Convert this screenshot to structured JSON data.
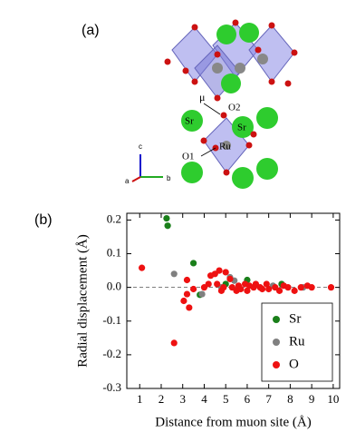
{
  "panel_a": {
    "label": "(a)",
    "atoms": [
      "μ",
      "O2",
      "Sr",
      "Sr",
      "Ru",
      "O1"
    ],
    "axes": [
      "c",
      "a",
      "b"
    ]
  },
  "chart_data": {
    "type": "scatter",
    "panel_label": "(b)",
    "x_label": "Distance from muon site (Å)",
    "y_label": "Radial displacement (Å)",
    "xlim": [
      0.4,
      10.3
    ],
    "ylim": [
      -0.3,
      0.22
    ],
    "xticks": [
      1,
      2,
      3,
      4,
      5,
      6,
      7,
      8,
      9,
      10
    ],
    "yticks": [
      -0.3,
      -0.2,
      -0.1,
      {
        "value": 0,
        "label": "0.0"
      },
      0.1,
      0.2
    ],
    "legend": "lower right",
    "series": [
      {
        "name": "Sr",
        "color": "#1a7f1a",
        "x": [
          2.25,
          2.3,
          3.5,
          3.8,
          5.0,
          6.0,
          7.6
        ],
        "values": [
          0.205,
          0.183,
          0.072,
          -0.022,
          0.01,
          0.022,
          0.01
        ]
      },
      {
        "name": "Ru",
        "color": "#808080",
        "x": [
          2.6,
          3.9,
          4.8,
          5.2,
          5.4,
          7.2,
          8.6
        ],
        "values": [
          0.04,
          -0.02,
          0.0,
          0.03,
          0.02,
          0.005,
          0.0
        ]
      },
      {
        "name": "O",
        "color": "#ee1111",
        "x": [
          1.1,
          2.6,
          3.05,
          3.2,
          3.2,
          3.3,
          3.5,
          4.0,
          4.2,
          4.3,
          4.5,
          4.6,
          4.7,
          4.8,
          4.9,
          5.0,
          5.2,
          5.3,
          5.5,
          5.6,
          5.7,
          5.9,
          6.0,
          6.1,
          6.3,
          6.4,
          6.6,
          6.7,
          6.9,
          7.0,
          7.3,
          7.5,
          7.7,
          7.9,
          8.2,
          8.5,
          8.8,
          9.0,
          9.9
        ],
        "values": [
          0.058,
          -0.165,
          -0.04,
          -0.02,
          0.022,
          -0.06,
          -0.005,
          0.0,
          0.01,
          0.035,
          0.04,
          0.01,
          0.05,
          -0.01,
          0.0,
          0.045,
          0.025,
          0.0,
          -0.01,
          0.005,
          -0.005,
          0.01,
          -0.01,
          0.005,
          0.0,
          0.01,
          0.0,
          -0.005,
          0.01,
          -0.005,
          0.0,
          -0.01,
          0.005,
          0.0,
          -0.01,
          0.0,
          0.005,
          0.0,
          0.0
        ]
      }
    ]
  }
}
